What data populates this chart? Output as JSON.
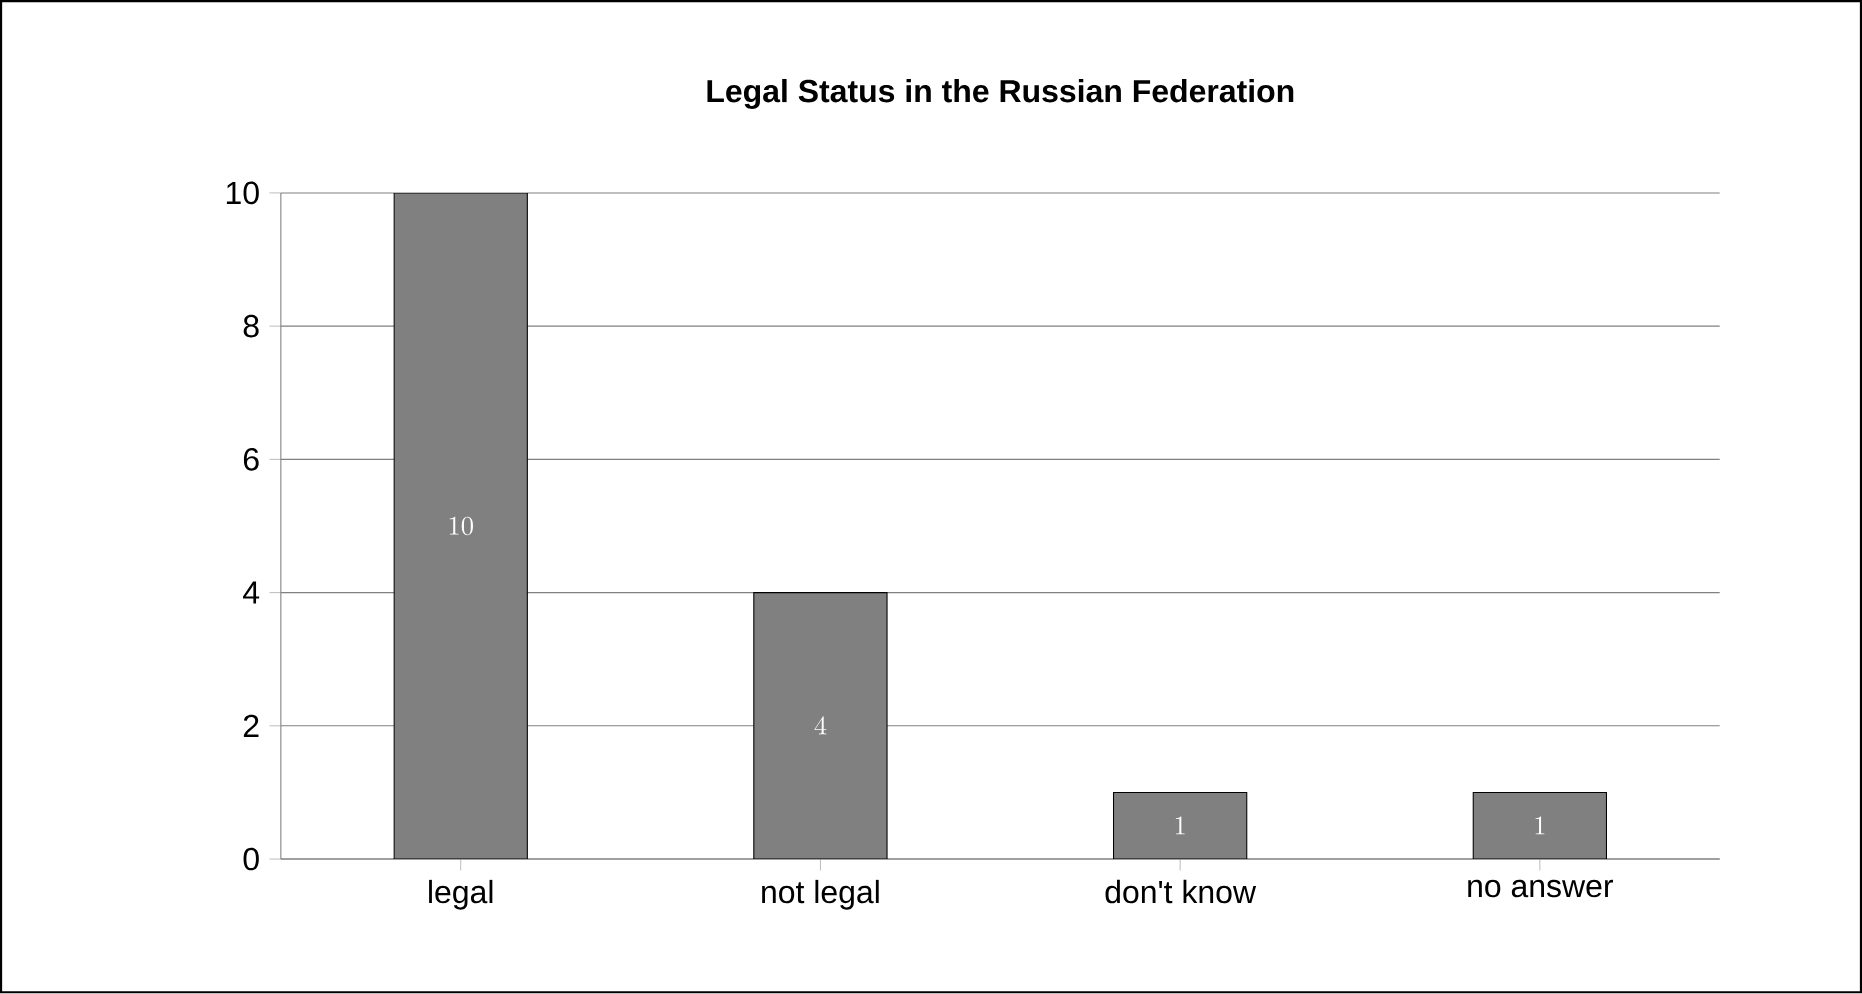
{
  "chart_data": {
    "type": "bar",
    "title": "Legal Status in the Russian Federation",
    "categories": [
      "legal",
      "not legal",
      "don't know",
      "no answer"
    ],
    "values": [
      10,
      4,
      1,
      1
    ],
    "color": "#808080",
    "ylim": [
      0,
      10
    ],
    "yticks": [
      0,
      2,
      4,
      6,
      8,
      10
    ],
    "grid": "y",
    "data_labels": true
  }
}
